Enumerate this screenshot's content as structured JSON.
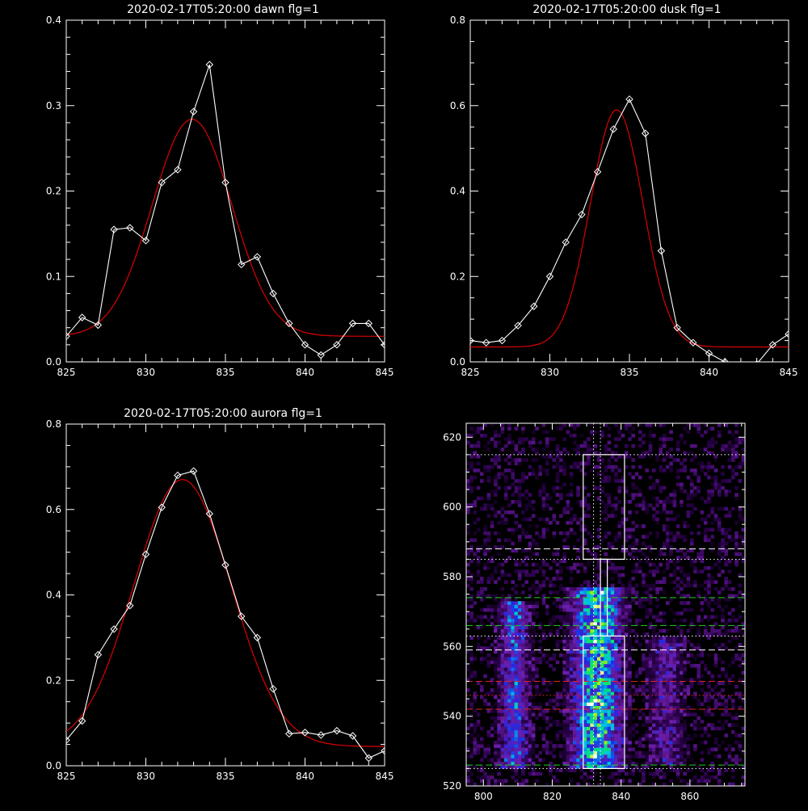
{
  "colors": {
    "background": "#000000",
    "axes": "#ffffff",
    "data_line": "#ffffff",
    "fit_line": "#dd0000",
    "green_dashed": "#22cc22",
    "red_dashed": "#dd2222"
  },
  "chart_data": [
    {
      "id": "dawn",
      "type": "line",
      "title": "2020-02-17T05:20:00 dawn flg=1",
      "xlabel": "",
      "ylabel": "",
      "xlim": [
        825,
        845
      ],
      "ylim": [
        0.0,
        0.4
      ],
      "xticks": [
        "825",
        "830",
        "835",
        "840",
        "845"
      ],
      "yticks": [
        "0.0",
        "0.1",
        "0.2",
        "0.3",
        "0.4"
      ],
      "series": [
        {
          "kind": "data",
          "x": [
            825,
            826,
            827,
            828,
            829,
            830,
            831,
            832,
            833,
            834,
            835,
            836,
            837,
            838,
            839,
            840,
            841,
            842,
            843,
            844,
            845
          ],
          "y": [
            0.03,
            0.052,
            0.043,
            0.155,
            0.157,
            0.142,
            0.21,
            0.225,
            0.293,
            0.348,
            0.21,
            0.114,
            0.123,
            0.08,
            0.045,
            0.02,
            0.008,
            0.02,
            0.045,
            0.045,
            0.02
          ]
        },
        {
          "kind": "fit",
          "model": "gaussian",
          "amplitude": 0.254,
          "center": 832.9,
          "sigma": 2.5,
          "baseline": 0.03
        }
      ]
    },
    {
      "id": "dusk",
      "type": "line",
      "title": "2020-02-17T05:20:00 dusk flg=1",
      "xlabel": "",
      "ylabel": "",
      "xlim": [
        825,
        845
      ],
      "ylim": [
        0.0,
        0.8
      ],
      "xticks": [
        "825",
        "830",
        "835",
        "840",
        "845"
      ],
      "yticks": [
        "0.0",
        "0.2",
        "0.4",
        "0.6",
        "0.8"
      ],
      "series": [
        {
          "kind": "data",
          "x": [
            825,
            826,
            827,
            828,
            829,
            830,
            831,
            832,
            833,
            834,
            835,
            836,
            837,
            838,
            839,
            840,
            841,
            842,
            843,
            844,
            845
          ],
          "y": [
            0.05,
            0.045,
            0.05,
            0.085,
            0.13,
            0.2,
            0.28,
            0.345,
            0.445,
            0.545,
            0.615,
            0.535,
            0.26,
            0.08,
            0.045,
            0.02,
            0.0,
            -0.01,
            -0.005,
            0.04,
            0.065
          ]
        },
        {
          "kind": "fit",
          "model": "gaussian",
          "amplitude": 0.555,
          "center": 834.2,
          "sigma": 1.65,
          "baseline": 0.035
        }
      ]
    },
    {
      "id": "aurora",
      "type": "line",
      "title": "2020-02-17T05:20:00 aurora flg=1",
      "xlabel": "",
      "ylabel": "",
      "xlim": [
        825,
        845
      ],
      "ylim": [
        0.0,
        0.8
      ],
      "xticks": [
        "825",
        "830",
        "835",
        "840",
        "845"
      ],
      "yticks": [
        "0.0",
        "0.2",
        "0.4",
        "0.6",
        "0.8"
      ],
      "series": [
        {
          "kind": "data",
          "x": [
            825,
            826,
            827,
            828,
            829,
            830,
            831,
            832,
            833,
            834,
            835,
            836,
            837,
            838,
            839,
            840,
            841,
            842,
            843,
            844,
            845
          ],
          "y": [
            0.06,
            0.105,
            0.26,
            0.32,
            0.375,
            0.495,
            0.605,
            0.68,
            0.69,
            0.59,
            0.47,
            0.35,
            0.3,
            0.18,
            0.075,
            0.078,
            0.072,
            0.082,
            0.07,
            0.018,
            0.035
          ]
        },
        {
          "kind": "fit",
          "model": "gaussian",
          "amplitude": 0.625,
          "center": 832.3,
          "sigma": 3.05,
          "baseline": 0.045
        }
      ]
    },
    {
      "id": "image",
      "type": "heatmap",
      "title": "",
      "xlim": [
        795,
        876
      ],
      "ylim": [
        520,
        624
      ],
      "xticks": [
        "800",
        "820",
        "840",
        "860"
      ],
      "yticks": [
        "520",
        "540",
        "560",
        "580",
        "600",
        "620"
      ],
      "bright_columns": [
        {
          "center": 809,
          "width": 5,
          "ymin": 525,
          "ymax": 572,
          "strength": 0.5
        },
        {
          "center": 833,
          "width": 8,
          "ymin": 525,
          "ymax": 576,
          "strength": 0.9
        },
        {
          "center": 853,
          "width": 6,
          "ymin": 526,
          "ymax": 562,
          "strength": 0.3
        }
      ],
      "boxes": [
        {
          "x0": 829,
          "x1": 841,
          "y0": 585,
          "y1": 615
        },
        {
          "x0": 829,
          "x1": 841,
          "y0": 525,
          "y1": 563
        },
        {
          "x0": 834,
          "x1": 836,
          "y0": 563,
          "y1": 585
        }
      ],
      "horizontal_lines": [
        {
          "y": 615,
          "style": "dotted",
          "color": "#ffffff"
        },
        {
          "y": 588,
          "style": "dashed",
          "color": "#ffffff"
        },
        {
          "y": 585,
          "style": "dotted",
          "color": "#ffffff"
        },
        {
          "y": 574,
          "style": "dashed",
          "color": "#22cc22"
        },
        {
          "y": 566,
          "style": "dashed",
          "color": "#22cc22"
        },
        {
          "y": 563,
          "style": "dotted",
          "color": "#ffffff"
        },
        {
          "y": 559,
          "style": "dashed",
          "color": "#ffffff"
        },
        {
          "y": 550,
          "style": "dashed",
          "color": "#dd2222"
        },
        {
          "y": 546,
          "style": "dotted",
          "color": "#dd2222"
        },
        {
          "y": 542,
          "style": "dashed",
          "color": "#dd2222"
        },
        {
          "y": 526,
          "style": "dashed",
          "color": "#22cc22"
        },
        {
          "y": 525,
          "style": "dotted",
          "color": "#ffffff"
        }
      ],
      "vertical_lines": [
        {
          "x": 832,
          "style": "dotted",
          "color": "#ffffff"
        },
        {
          "x": 834,
          "style": "dotted",
          "color": "#ffffff"
        }
      ]
    }
  ]
}
